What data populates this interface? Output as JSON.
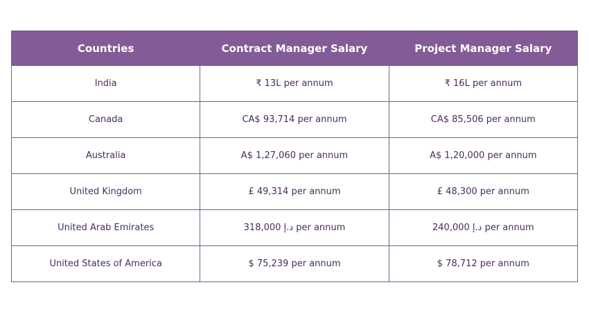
{
  "table": {
    "header": [
      "Countries",
      "Contract Manager Salary",
      "Project Manager Salary"
    ],
    "rows": [
      [
        "India",
        "₹ 13L per annum",
        "₹ 16L per annum"
      ],
      [
        "Canada",
        "CA$ 93,714 per annum",
        "CA$ 85,506 per annum"
      ],
      [
        "Australia",
        "A$ 1,27,060 per annum",
        "A$ 1,20,000 per annum"
      ],
      [
        "United Kingdom",
        "£ 49,314 per annum",
        "£ 48,300 per annum"
      ],
      [
        "United Arab Emirates",
        "318,000 د.إ per annum",
        "240,000 د.إ per annum"
      ],
      [
        "United States of America",
        "$ 75,239 per annum",
        "$ 78,712 per annum"
      ]
    ]
  }
}
